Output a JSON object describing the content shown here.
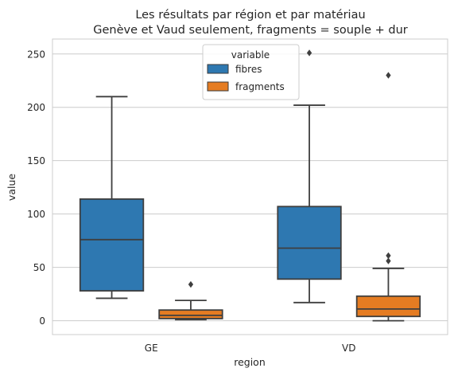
{
  "chart_data": {
    "type": "box",
    "title": "Les résultats par région et par matériau",
    "subtitle": "Genève et Vaud seulement, fragments = souple + dur",
    "xlabel": "region",
    "ylabel": "value",
    "ylim": [
      -13,
      264
    ],
    "yticks": [
      0,
      50,
      100,
      150,
      200,
      250
    ],
    "grid": true,
    "legend": {
      "title": "variable",
      "placement": "top-center"
    },
    "categories": [
      "GE",
      "VD"
    ],
    "series": [
      {
        "name": "fibres",
        "color": "#2e78b1",
        "boxes": [
          {
            "whisker_low": 21,
            "q1": 28,
            "median": 76,
            "q3": 114,
            "whisker_high": 210,
            "outliers": []
          },
          {
            "whisker_low": 17,
            "q1": 39,
            "median": 68,
            "q3": 107,
            "whisker_high": 202,
            "outliers": [
              251
            ]
          }
        ]
      },
      {
        "name": "fragments",
        "color": "#e57c22",
        "boxes": [
          {
            "whisker_low": 1,
            "q1": 2,
            "median": 5,
            "q3": 10,
            "whisker_high": 19,
            "outliers": [
              34
            ]
          },
          {
            "whisker_low": 0,
            "q1": 4,
            "median": 11,
            "q3": 23,
            "whisker_high": 49,
            "outliers": [
              56,
              61,
              230
            ]
          }
        ]
      }
    ]
  }
}
